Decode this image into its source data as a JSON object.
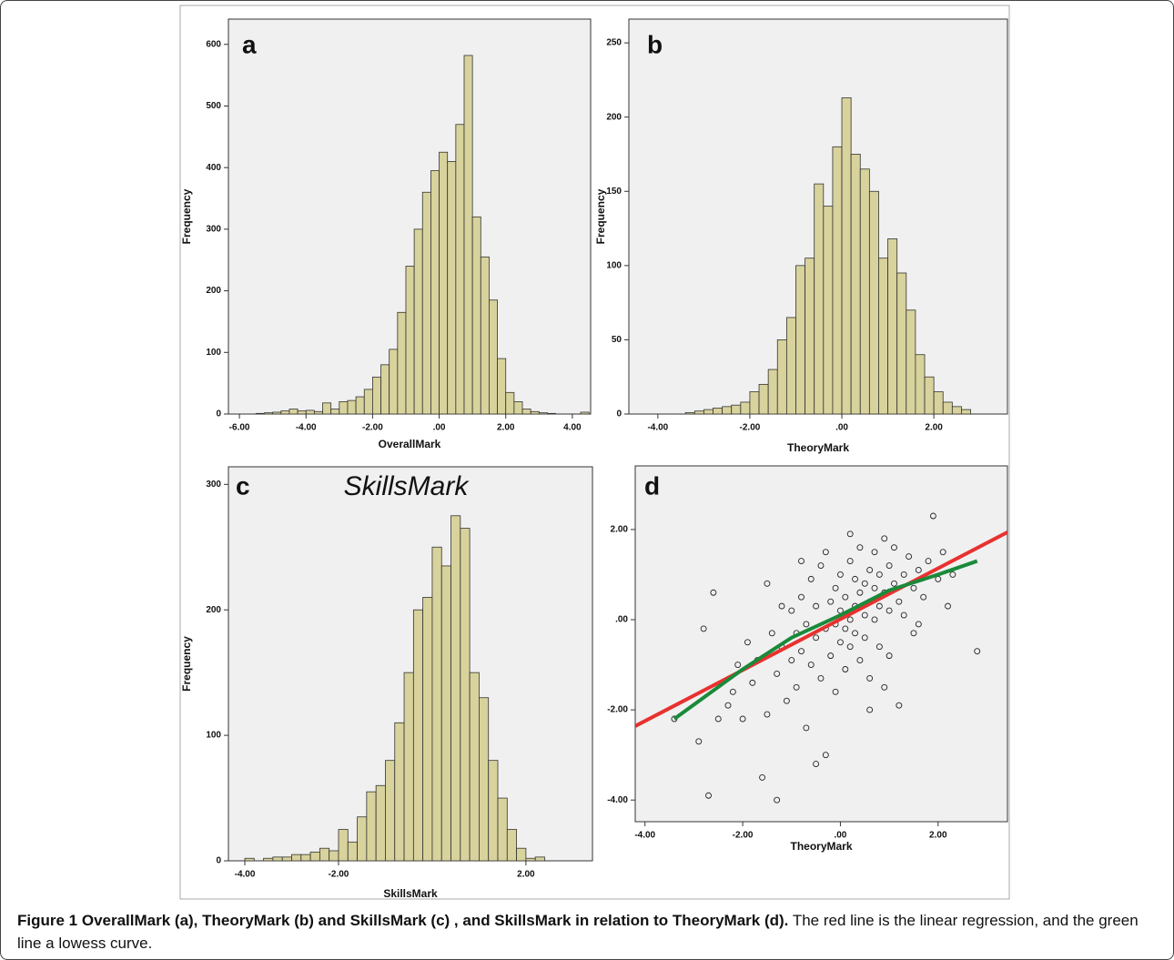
{
  "chart_data": [
    {
      "type": "histogram",
      "panel_label": "a",
      "xlabel": "OverallMark",
      "ylabel": "Frequency",
      "color": "#d8d29c",
      "bins": [
        -5.5,
        -5.25,
        -5,
        -4.75,
        -4.5,
        -4.25,
        -4,
        -3.75,
        -3.5,
        -3.25,
        -3,
        -2.75,
        -2.5,
        -2.25,
        -2,
        -1.75,
        -1.5,
        -1.25,
        -1,
        -0.75,
        -0.5,
        -0.25,
        0,
        0.25,
        0.5,
        0.75,
        1,
        1.25,
        1.5,
        1.75,
        2,
        2.25,
        2.5,
        2.75,
        3,
        3.25,
        3.5,
        3.75,
        4,
        4.25,
        4.5
      ],
      "values": [
        1,
        2,
        3,
        5,
        8,
        5,
        6,
        4,
        18,
        8,
        20,
        22,
        28,
        40,
        60,
        80,
        105,
        165,
        240,
        300,
        360,
        395,
        425,
        410,
        470,
        582,
        320,
        255,
        185,
        90,
        35,
        20,
        8,
        4,
        2,
        1,
        0,
        0,
        0,
        3
      ],
      "xlim": [
        -6.33,
        4.55
      ],
      "ylim": [
        0,
        641
      ],
      "xticks": [
        {
          "value": -6,
          "label": "-6.00"
        },
        {
          "value": -4,
          "label": "-4.00"
        },
        {
          "value": -2,
          "label": "-2.00"
        },
        {
          "value": 0,
          "label": ".00"
        },
        {
          "value": 2,
          "label": "2.00"
        },
        {
          "value": 4,
          "label": "4.00"
        }
      ],
      "yticks": [
        0,
        100,
        200,
        300,
        400,
        500,
        600
      ]
    },
    {
      "type": "histogram",
      "panel_label": "b",
      "xlabel": "TheoryMark",
      "ylabel": "Frequency",
      "color": "#d8d29c",
      "bins": [
        -3.4,
        -3.2,
        -3,
        -2.8,
        -2.6,
        -2.4,
        -2.2,
        -2,
        -1.8,
        -1.6,
        -1.4,
        -1.2,
        -1,
        -0.8,
        -0.6,
        -0.4,
        -0.2,
        0,
        0.2,
        0.4,
        0.6,
        0.8,
        1,
        1.2,
        1.4,
        1.6,
        1.8,
        2,
        2.2,
        2.4,
        2.6,
        2.8
      ],
      "values": [
        1,
        2,
        3,
        4,
        5,
        6,
        8,
        15,
        20,
        30,
        50,
        65,
        100,
        105,
        155,
        140,
        180,
        213,
        175,
        165,
        150,
        105,
        118,
        95,
        70,
        40,
        25,
        15,
        8,
        5,
        3
      ],
      "xlim": [
        -4.63,
        3.6
      ],
      "ylim": [
        0,
        266
      ],
      "xticks": [
        {
          "value": -4,
          "label": "-4.00"
        },
        {
          "value": -2,
          "label": "-2.00"
        },
        {
          "value": 0,
          "label": ".00"
        },
        {
          "value": 2,
          "label": "2.00"
        }
      ],
      "yticks": [
        0,
        50,
        100,
        150,
        200,
        250
      ]
    },
    {
      "type": "histogram",
      "panel_label": "c",
      "title": "SkillsMark",
      "xlabel": "SkillsMark",
      "ylabel": "Frequency",
      "color": "#d8d29c",
      "bins": [
        -4,
        -3.8,
        -3.6,
        -3.4,
        -3.2,
        -3,
        -2.8,
        -2.6,
        -2.4,
        -2.2,
        -2,
        -1.8,
        -1.6,
        -1.4,
        -1.2,
        -1,
        -0.8,
        -0.6,
        -0.4,
        -0.2,
        0,
        0.2,
        0.4,
        0.6,
        0.8,
        1,
        1.2,
        1.4,
        1.6,
        1.8,
        2,
        2.2,
        2.4
      ],
      "values": [
        2,
        0,
        2,
        3,
        3,
        5,
        5,
        7,
        10,
        8,
        25,
        15,
        35,
        55,
        60,
        80,
        110,
        150,
        200,
        210,
        250,
        235,
        275,
        265,
        150,
        130,
        80,
        50,
        25,
        10,
        2,
        3
      ],
      "xlim": [
        -4.35,
        3.42
      ],
      "ylim": [
        0,
        314
      ],
      "xticks": [
        {
          "value": -4,
          "label": "-4.00"
        },
        {
          "value": -2,
          "label": "-2.00"
        },
        {
          "value": 2,
          "label": "2.00"
        }
      ],
      "yticks": [
        0,
        100,
        200,
        300
      ]
    },
    {
      "type": "scatter",
      "panel_label": "d",
      "xlabel": "TheoryMark",
      "x": [
        -3.4,
        -2.8,
        -2.6,
        -2.7,
        -2.9,
        -2.5,
        -2.3,
        -2.2,
        -2.0,
        -1.9,
        -1.8,
        -1.7,
        -1.6,
        -1.5,
        -1.4,
        -1.3,
        -1.3,
        -1.2,
        -1.1,
        -1.0,
        -1.0,
        -0.9,
        -0.9,
        -0.8,
        -0.8,
        -0.7,
        -0.7,
        -0.6,
        -0.6,
        -0.5,
        -0.5,
        -0.4,
        -0.4,
        -0.3,
        -0.3,
        -0.3,
        -0.2,
        -0.2,
        -0.1,
        -0.1,
        -0.1,
        0,
        0,
        0,
        0.1,
        0.1,
        0.1,
        0.2,
        0.2,
        0.2,
        0.3,
        0.3,
        0.3,
        0.4,
        0.4,
        0.4,
        0.5,
        0.5,
        0.5,
        0.6,
        0.6,
        0.6,
        0.7,
        0.7,
        0.7,
        0.8,
        0.8,
        0.8,
        0.9,
        0.9,
        1.0,
        1.0,
        1.0,
        1.1,
        1.1,
        1.2,
        1.2,
        1.3,
        1.3,
        1.4,
        1.5,
        1.5,
        1.6,
        1.7,
        1.8,
        1.9,
        2.0,
        2.1,
        2.2,
        2.3,
        2.8,
        -1.5,
        -2.1,
        -1.2,
        0.6,
        -0.5,
        0.9,
        1.6,
        -0.8,
        0.2
      ],
      "y": [
        -2.2,
        -0.2,
        0.6,
        -3.9,
        -2.7,
        -2.2,
        -1.9,
        -1.6,
        -2.2,
        -0.5,
        -1.4,
        -0.9,
        -3.5,
        -2.1,
        -0.3,
        -4.0,
        -1.2,
        -0.6,
        -1.8,
        0.2,
        -0.9,
        -1.5,
        -0.3,
        0.5,
        -0.7,
        -2.4,
        -0.1,
        0.9,
        -1.0,
        -0.4,
        0.3,
        -1.3,
        1.2,
        -0.2,
        1.5,
        -3.0,
        0.4,
        -0.8,
        -0.1,
        0.7,
        -1.6,
        0.2,
        -0.5,
        1.0,
        -0.2,
        0.5,
        -1.1,
        0,
        1.3,
        -0.6,
        0.3,
        -0.3,
        0.9,
        0.6,
        -0.9,
        1.6,
        0.1,
        0.8,
        -0.4,
        0.4,
        1.1,
        -1.3,
        0.7,
        0,
        1.5,
        0.3,
        -0.6,
        1.0,
        0.6,
        1.8,
        0.2,
        1.2,
        -0.8,
        0.8,
        1.6,
        0.4,
        -1.9,
        1.0,
        0.1,
        1.4,
        0.7,
        -0.3,
        1.1,
        0.5,
        1.3,
        2.3,
        0.9,
        1.5,
        0.3,
        1.0,
        -0.7,
        0.8,
        -1.0,
        0.3,
        -2.0,
        -3.2,
        -1.5,
        -0.1,
        1.3,
        1.9
      ],
      "lines": [
        {
          "color": "#e8312f",
          "x": [
            -4.2,
            3.42
          ],
          "y": [
            -2.36,
            1.94
          ]
        },
        {
          "color": "#1a8a3a",
          "x": [
            -3.4,
            -2,
            -1,
            0,
            1,
            2,
            2.8
          ],
          "y": [
            -2.2,
            -1.1,
            -0.4,
            0.1,
            0.65,
            1.0,
            1.3
          ]
        }
      ],
      "xlim": [
        -4.2,
        3.42
      ],
      "ylim": [
        -4.48,
        3.41
      ],
      "xticks": [
        {
          "value": -4,
          "label": "-4.00"
        },
        {
          "value": -2,
          "label": "-2.00"
        },
        {
          "value": 0,
          "label": ".00"
        },
        {
          "value": 2,
          "label": "2.00"
        }
      ],
      "yticks": [
        {
          "value": -4,
          "label": "-4.00"
        },
        {
          "value": -2,
          "label": "-2.00"
        },
        {
          "value": 0,
          "label": ".00"
        },
        {
          "value": 2,
          "label": "2.00"
        }
      ]
    }
  ],
  "caption": {
    "heading": "Figure 1 OverallMark (a), TheoryMark (b) and SkillsMark (c) , and SkillsMark in relation to TheoryMark (d).",
    "text": "The red line is the linear regression, and the green line a lowess curve."
  }
}
